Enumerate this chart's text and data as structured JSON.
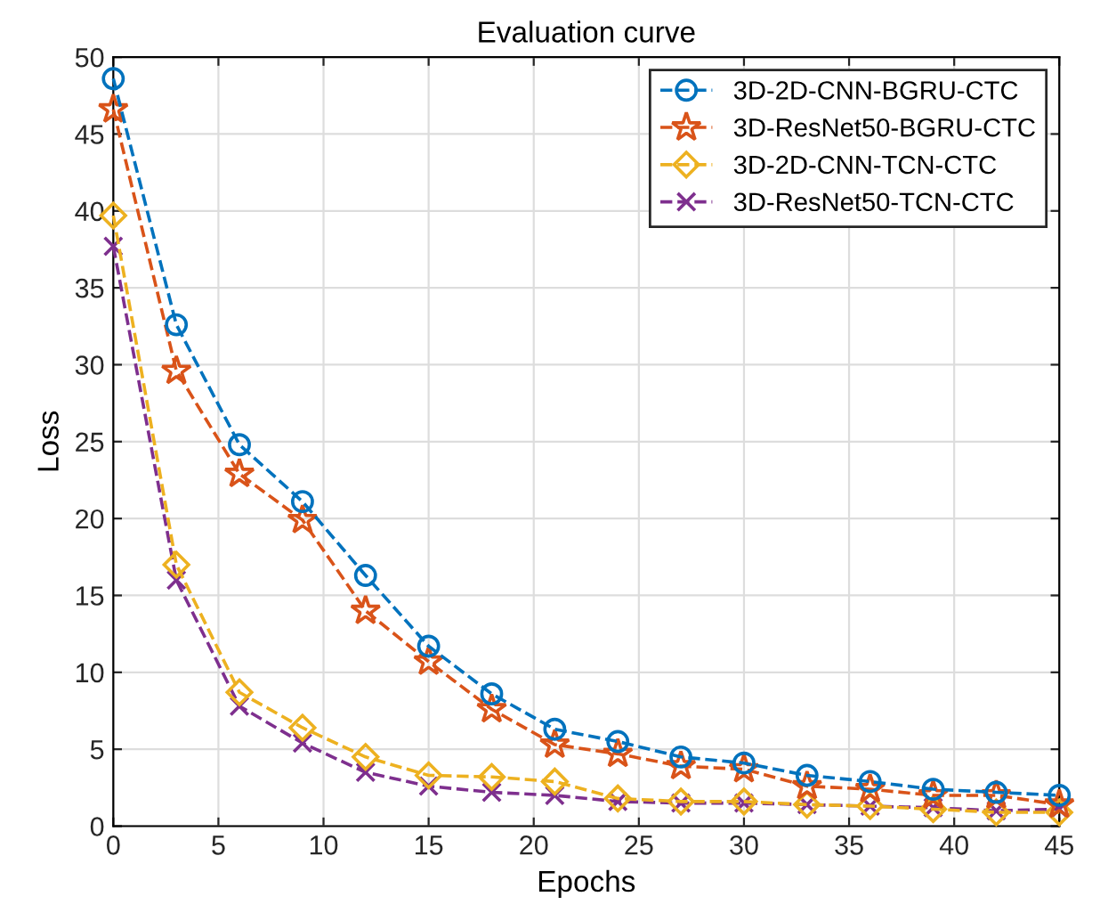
{
  "chart_data": {
    "type": "line",
    "title": "Evaluation curve",
    "xlabel": "Epochs",
    "ylabel": "Loss",
    "x": [
      0,
      3,
      6,
      9,
      12,
      15,
      18,
      21,
      24,
      27,
      30,
      33,
      36,
      39,
      42,
      45
    ],
    "series": [
      {
        "name": "3D-2D-CNN-BGRU-CTC",
        "color": "#0072bd",
        "marker": "circle",
        "values": [
          48.6,
          32.6,
          24.8,
          21.1,
          16.3,
          11.7,
          8.6,
          6.3,
          5.5,
          4.5,
          4.1,
          3.3,
          2.9,
          2.4,
          2.2,
          2.0
        ]
      },
      {
        "name": "3D-ResNet50-BGRU-CTC",
        "color": "#d95319",
        "marker": "star",
        "values": [
          46.6,
          29.6,
          22.9,
          19.9,
          14.0,
          10.7,
          7.6,
          5.3,
          4.7,
          3.9,
          3.7,
          2.6,
          2.4,
          2.0,
          2.0,
          1.4
        ]
      },
      {
        "name": "3D-2D-CNN-TCN-CTC",
        "color": "#edb120",
        "marker": "diamond",
        "values": [
          39.7,
          17.0,
          8.7,
          6.4,
          4.5,
          3.3,
          3.2,
          2.9,
          1.8,
          1.6,
          1.6,
          1.4,
          1.3,
          1.1,
          0.9,
          0.9
        ]
      },
      {
        "name": "3D-ResNet50-TCN-CTC",
        "color": "#7e2f8e",
        "marker": "cross",
        "values": [
          37.7,
          16.0,
          7.8,
          5.4,
          3.5,
          2.6,
          2.2,
          2.0,
          1.6,
          1.5,
          1.5,
          1.4,
          1.3,
          1.2,
          1.0,
          1.1
        ]
      }
    ],
    "xlim": [
      0,
      45
    ],
    "xticks": [
      0,
      5,
      10,
      15,
      20,
      25,
      30,
      35,
      40,
      45
    ],
    "ylim": [
      0,
      50
    ],
    "yticks": [
      0,
      5,
      10,
      15,
      20,
      25,
      30,
      35,
      40,
      45,
      50
    ],
    "grid": true,
    "legend": "top right",
    "line_style": "dashed"
  }
}
